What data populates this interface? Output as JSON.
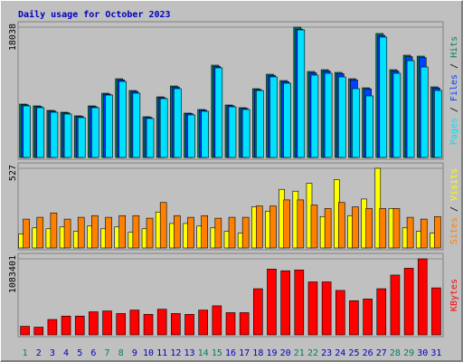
{
  "title": "Daily usage for October 2023",
  "legend_separator": " / ",
  "chart_data": [
    {
      "type": "bar",
      "ylim": [
        0,
        18038
      ],
      "yticks": [
        18038
      ],
      "grid": true,
      "series": [
        {
          "name": "Hits",
          "color": "#00805C",
          "values": [
            7390,
            7140,
            6514,
            6263,
            5762,
            7140,
            8893,
            10898,
            9269,
            5637,
            8392,
            9896,
            6138,
            6639,
            12777,
            7265,
            6889,
            9520,
            11524,
            10647,
            18038,
            11900,
            12150,
            11774,
            10898,
            9645,
            17161,
            12150,
            14154,
            14029,
            9770
          ]
        },
        {
          "name": "Files",
          "color": "#0040FF",
          "values": [
            7280,
            7040,
            6420,
            6170,
            5680,
            7030,
            8760,
            10740,
            9130,
            5550,
            8270,
            9750,
            6050,
            6540,
            12590,
            7160,
            6790,
            9380,
            11350,
            10490,
            17770,
            11720,
            11970,
            11600,
            10740,
            9500,
            16900,
            11970,
            13950,
            13820,
            9620
          ]
        },
        {
          "name": "Pages",
          "color": "#00E0FF",
          "values": [
            7140,
            6890,
            6260,
            6010,
            5510,
            6890,
            8640,
            10520,
            8890,
            5390,
            8140,
            9520,
            5890,
            6390,
            12400,
            7010,
            6640,
            9270,
            11150,
            10270,
            17660,
            11400,
            11650,
            11150,
            9520,
            8520,
            16660,
            11650,
            13400,
            12520,
            9270
          ]
        }
      ]
    },
    {
      "type": "bar",
      "ylim": [
        0,
        527
      ],
      "yticks": [
        527
      ],
      "grid": true,
      "series": [
        {
          "name": "Visits",
          "color": "#FFFF00",
          "values": [
            93,
            133,
            127,
            139,
            110,
            145,
            127,
            139,
            104,
            127,
            237,
            162,
            162,
            145,
            133,
            110,
            98,
            272,
            243,
            388,
            376,
            428,
            208,
            452,
            214,
            324,
            527,
            261,
            133,
            110,
            98
          ]
        },
        {
          "name": "Sites",
          "color": "#FF8000",
          "values": [
            191,
            203,
            232,
            191,
            203,
            214,
            203,
            214,
            214,
            197,
            301,
            214,
            203,
            214,
            197,
            203,
            203,
            278,
            278,
            318,
            318,
            284,
            261,
            301,
            272,
            261,
            261,
            261,
            203,
            191,
            208
          ]
        }
      ]
    },
    {
      "type": "bar",
      "ylim": [
        0,
        1083401
      ],
      "yticks": [
        1083401
      ],
      "grid": true,
      "categories": [
        "1",
        "2",
        "3",
        "4",
        "5",
        "6",
        "7",
        "8",
        "9",
        "10",
        "11",
        "12",
        "13",
        "14",
        "15",
        "16",
        "17",
        "18",
        "19",
        "20",
        "21",
        "22",
        "23",
        "24",
        "25",
        "26",
        "27",
        "28",
        "29",
        "30",
        "31"
      ],
      "category_colors": [
        "#00805C",
        "#0000C0",
        "#0000C0",
        "#0000C0",
        "#0000C0",
        "#0000C0",
        "#00805C",
        "#00805C",
        "#0000C0",
        "#0000C0",
        "#0000C0",
        "#0000C0",
        "#0000C0",
        "#00805C",
        "#00805C",
        "#0000C0",
        "#0000C0",
        "#0000C0",
        "#0000C0",
        "#0000C0",
        "#00805C",
        "#00805C",
        "#0000C0",
        "#0000C0",
        "#0000C0",
        "#0000C0",
        "#0000C0",
        "#00805C",
        "#00805C",
        "#0000C0",
        "#0000C0"
      ],
      "series": [
        {
          "name": "KBytes",
          "color": "#FF0000",
          "values": [
            121730,
            109557,
            219114,
            267806,
            267806,
            328671,
            340844,
            304325,
            353017,
            292152,
            365190,
            304325,
            292152,
            353017,
            413882,
            316498,
            316498,
            657342,
            937321,
            912975,
            925148,
            754726,
            754726,
            632996,
            486920,
            511266,
            657342,
            852110,
            949494,
            1083401,
            669515
          ]
        }
      ]
    }
  ]
}
